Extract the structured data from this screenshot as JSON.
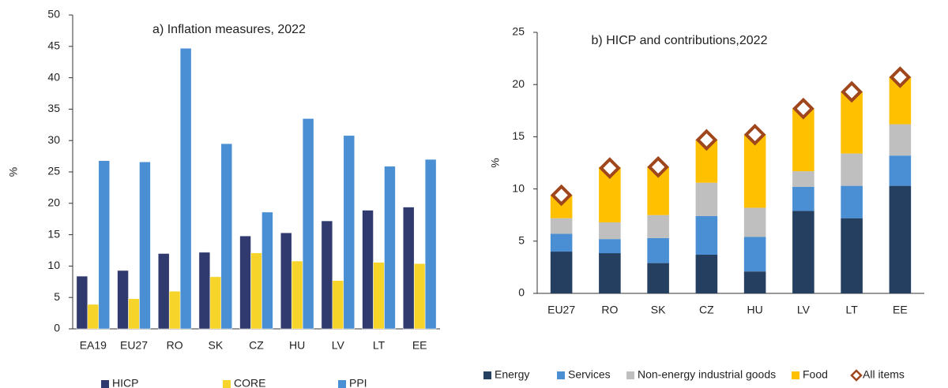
{
  "chart_data": [
    {
      "type": "bar",
      "title": "a) Inflation measures, 2022",
      "y_label": "%",
      "categories": [
        "EA19",
        "EU27",
        "RO",
        "SK",
        "CZ",
        "HU",
        "LV",
        "LT",
        "EE"
      ],
      "series": [
        {
          "name": "HICP",
          "color": "#313a6e",
          "values": [
            8.4,
            9.3,
            12.0,
            12.2,
            14.8,
            15.3,
            17.2,
            18.9,
            19.4
          ]
        },
        {
          "name": "CORE",
          "color": "#f7d42a",
          "values": [
            3.9,
            4.8,
            6.0,
            8.3,
            12.1,
            10.8,
            7.7,
            10.6,
            10.4
          ]
        },
        {
          "name": "PPI",
          "color": "#4a8fd4",
          "values": [
            26.8,
            26.6,
            44.7,
            29.5,
            18.6,
            33.5,
            30.8,
            25.9,
            27.0
          ]
        }
      ],
      "ylim": [
        0,
        50
      ],
      "yticks": [
        0,
        5,
        10,
        15,
        20,
        25,
        30,
        35,
        40,
        45,
        50
      ],
      "stacked": false
    },
    {
      "type": "bar",
      "title": "b) HICP and contributions,2022",
      "y_label": "%",
      "categories": [
        "EU27",
        "RO",
        "SK",
        "CZ",
        "HU",
        "LV",
        "LT",
        "EE"
      ],
      "series": [
        {
          "name": "Energy",
          "color": "#243f60",
          "values": [
            4.0,
            3.85,
            2.9,
            3.7,
            2.1,
            7.9,
            7.2,
            10.3
          ]
        },
        {
          "name": "Services",
          "color": "#4a8fd4",
          "values": [
            1.7,
            1.35,
            2.4,
            3.7,
            3.3,
            2.3,
            3.1,
            2.9
          ]
        },
        {
          "name": "Non-energy industrial goods",
          "color": "#bfbfbf",
          "values": [
            1.5,
            1.6,
            2.2,
            3.2,
            2.8,
            1.5,
            3.1,
            3.0
          ]
        },
        {
          "name": "Food",
          "color": "#ffc000",
          "values": [
            2.2,
            5.3,
            4.6,
            4.1,
            7.0,
            6.0,
            5.9,
            4.5
          ]
        },
        {
          "name": "All items",
          "color": "#a0461c",
          "type": "scatter",
          "values": [
            9.4,
            12.0,
            12.1,
            14.7,
            15.2,
            17.7,
            19.3,
            20.7
          ]
        }
      ],
      "ylim": [
        0,
        25
      ],
      "yticks": [
        0,
        5,
        10,
        15,
        20,
        25
      ],
      "stacked": true
    }
  ]
}
